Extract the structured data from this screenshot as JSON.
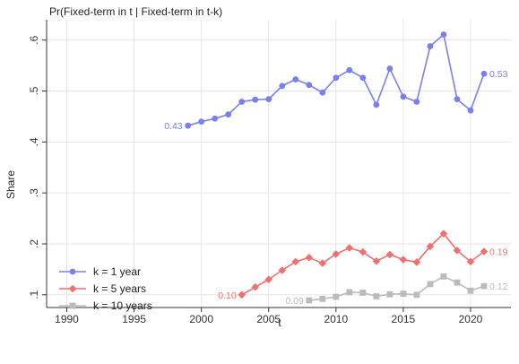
{
  "chart_data": {
    "type": "line",
    "title": "Pr(Fixed-term in t | Fixed-term in t-k)",
    "xlabel": "t",
    "ylabel": "Share",
    "xlim": [
      1988.5,
      2023
    ],
    "ylim": [
      0.075,
      0.64
    ],
    "x_ticks": [
      1990,
      1995,
      2000,
      2005,
      2010,
      2015,
      2020
    ],
    "x_tick_labels": [
      "1990",
      "1995",
      "2000",
      "2005",
      "2010",
      "2015",
      "2020"
    ],
    "y_ticks": [
      0.1,
      0.2,
      0.3,
      0.4,
      0.5,
      0.6
    ],
    "y_tick_labels": [
      ".1",
      ".2",
      ".3",
      ".4",
      ".5",
      ".6"
    ],
    "grid": true,
    "legend_position": "bottom-left",
    "series": [
      {
        "name": "k = 1 year",
        "color": "#7a7ff0",
        "marker": "circle",
        "x": [
          1999,
          2000,
          2001,
          2002,
          2003,
          2004,
          2005,
          2006,
          2007,
          2008,
          2009,
          2010,
          2011,
          2012,
          2013,
          2014,
          2015,
          2016,
          2017,
          2018,
          2019,
          2020,
          2021
        ],
        "values": [
          0.432,
          0.44,
          0.446,
          0.454,
          0.479,
          0.483,
          0.484,
          0.51,
          0.523,
          0.512,
          0.497,
          0.526,
          0.541,
          0.526,
          0.473,
          0.544,
          0.489,
          0.479,
          0.588,
          0.611,
          0.484,
          0.462,
          0.534
        ],
        "start_label": "0.43",
        "end_label": "0.53"
      },
      {
        "name": "k = 5 years",
        "color": "#f07070",
        "marker": "diamond",
        "x": [
          2003,
          2004,
          2005,
          2006,
          2007,
          2008,
          2009,
          2010,
          2011,
          2012,
          2013,
          2014,
          2015,
          2016,
          2017,
          2018,
          2019,
          2020,
          2021
        ],
        "values": [
          0.1,
          0.115,
          0.13,
          0.148,
          0.165,
          0.173,
          0.162,
          0.18,
          0.192,
          0.184,
          0.166,
          0.179,
          0.169,
          0.164,
          0.195,
          0.22,
          0.187,
          0.165,
          0.185
        ],
        "start_label": "0.10",
        "end_label": "0.19"
      },
      {
        "name": "k = 10 years",
        "color": "#bbbbbb",
        "marker": "square",
        "x": [
          2008,
          2009,
          2010,
          2011,
          2012,
          2013,
          2014,
          2015,
          2016,
          2017,
          2018,
          2019,
          2020,
          2021
        ],
        "values": [
          0.089,
          0.092,
          0.096,
          0.105,
          0.104,
          0.097,
          0.101,
          0.102,
          0.1,
          0.121,
          0.136,
          0.124,
          0.108,
          0.117
        ],
        "start_label": "0.09",
        "end_label": "0.12"
      }
    ]
  }
}
